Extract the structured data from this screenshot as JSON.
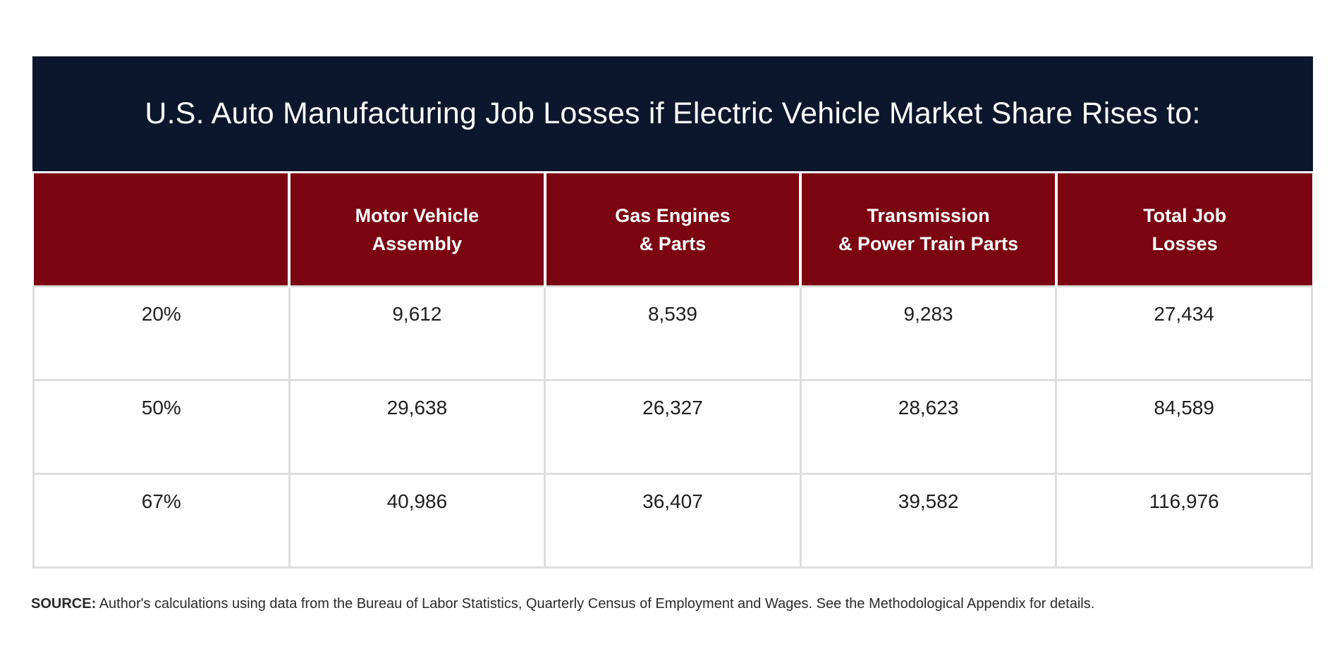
{
  "title": "U.S. Auto Manufacturing Job Losses if Electric Vehicle Market Share Rises to:",
  "chart_data": {
    "type": "table",
    "title": "U.S. Auto Manufacturing Job Losses if Electric Vehicle Market Share Rises to:",
    "columns": [
      {
        "key": "share",
        "lines": [
          ""
        ]
      },
      {
        "key": "motor_vehicle_assembly",
        "lines": [
          "Motor Vehicle",
          "Assembly"
        ]
      },
      {
        "key": "gas_engines_parts",
        "lines": [
          "Gas Engines",
          "& Parts"
        ]
      },
      {
        "key": "transmission_power_train",
        "lines": [
          "Transmission",
          "& Power Train Parts"
        ]
      },
      {
        "key": "total_job_losses",
        "lines": [
          "Total Job",
          "Losses"
        ]
      }
    ],
    "rows": [
      [
        "20%",
        "9,612",
        "8,539",
        "9,283",
        "27,434"
      ],
      [
        "50%",
        "29,638",
        "26,327",
        "28,623",
        "84,589"
      ],
      [
        "67%",
        "40,986",
        "36,407",
        "39,582",
        "116,976"
      ]
    ]
  },
  "source": {
    "label": "SOURCE:",
    "text": "Author's calculations using data from the Bureau of Labor Statistics, Quarterly Census of Employment and Wages. See the Methodological Appendix for details."
  },
  "colors": {
    "title_bg": "#0c162c",
    "header_bg": "#7b0511",
    "grid": "#dedede"
  }
}
